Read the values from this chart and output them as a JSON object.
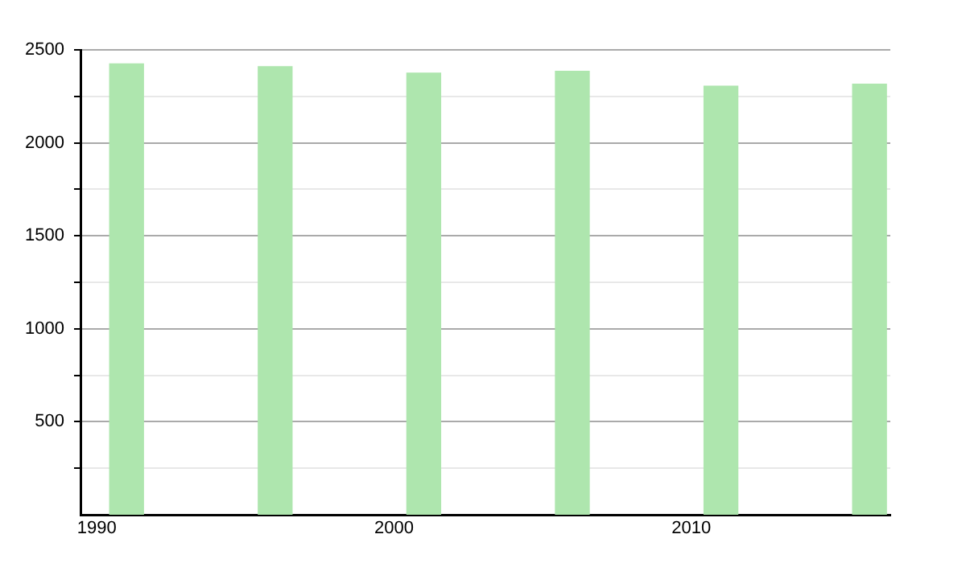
{
  "chart_data": {
    "type": "bar",
    "x": [
      1991,
      1996,
      2001,
      2006,
      2011,
      2016
    ],
    "values": [
      2425,
      2410,
      2375,
      2385,
      2305,
      2315
    ],
    "color": "#aee6ae",
    "xlim": [
      1989.45,
      2016.7
    ],
    "xticks": [
      1990,
      2000,
      2010
    ],
    "ylim": [
      0,
      2500
    ],
    "yticks": [
      {
        "value": 250,
        "label": null
      },
      500,
      {
        "value": 750,
        "label": null
      },
      1000,
      {
        "value": 1250,
        "label": null
      },
      1500,
      {
        "value": 1750,
        "label": null
      },
      2000,
      {
        "value": 2250,
        "label": null
      },
      2500
    ],
    "grid": "y",
    "legend": false
  }
}
